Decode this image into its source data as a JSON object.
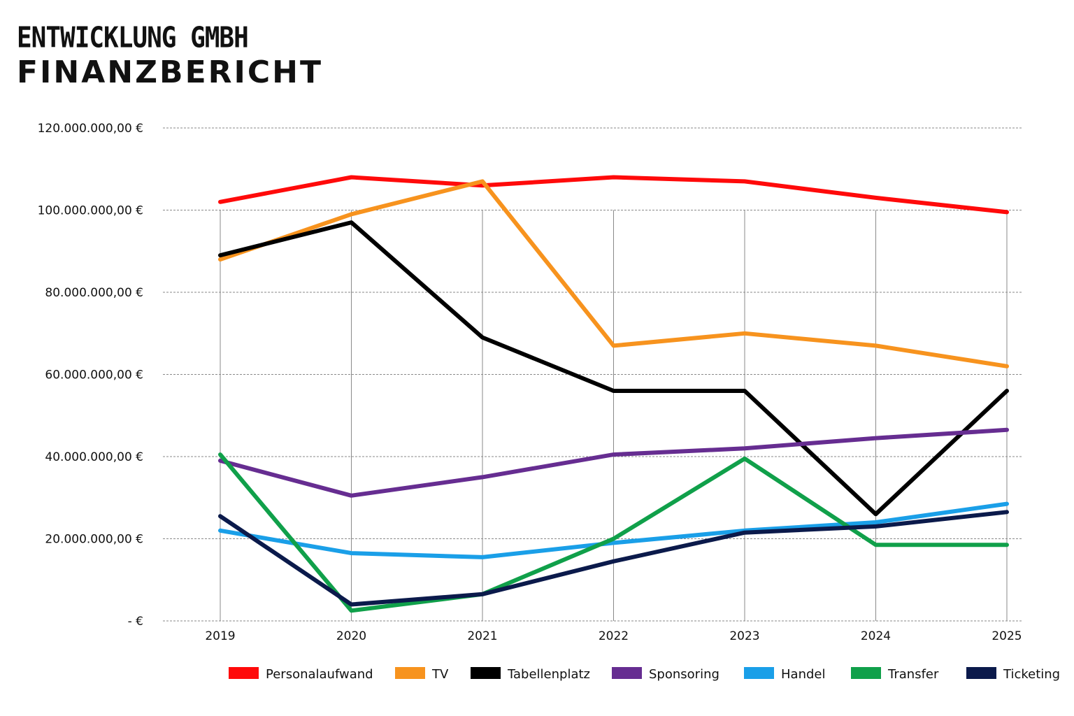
{
  "header": {
    "company": "ENTWICKLUNG GMBH",
    "report": "FINANZBERICHT"
  },
  "chart_data": {
    "type": "line",
    "title": "",
    "xlabel": "",
    "ylabel": "",
    "categories": [
      "2019",
      "2020",
      "2021",
      "2022",
      "2023",
      "2024",
      "2025"
    ],
    "y_ticks": [
      {
        "value": 0,
        "label": "-   €"
      },
      {
        "value": 20000000,
        "label": "20.000.000,00 €"
      },
      {
        "value": 40000000,
        "label": "40.000.000,00 €"
      },
      {
        "value": 60000000,
        "label": "60.000.000,00 €"
      },
      {
        "value": 80000000,
        "label": "80.000.000,00 €"
      },
      {
        "value": 100000000,
        "label": "100.000.000,00 €"
      },
      {
        "value": 120000000,
        "label": "120.000.000,00 €"
      }
    ],
    "ylim": [
      0,
      120000000
    ],
    "grid": true,
    "legend_position": "bottom",
    "series": [
      {
        "name": "Personalaufwand",
        "color": "#ff0a0a",
        "values": [
          102000000,
          108000000,
          106000000,
          108000000,
          107000000,
          103000000,
          99500000
        ]
      },
      {
        "name": "TV",
        "color": "#f7931e",
        "values": [
          88000000,
          99000000,
          107000000,
          67000000,
          70000000,
          67000000,
          62000000
        ]
      },
      {
        "name": "Tabellenplatz",
        "color": "#000000",
        "values": [
          89000000,
          97000000,
          69000000,
          56000000,
          56000000,
          26000000,
          56000000
        ]
      },
      {
        "name": "Sponsoring",
        "color": "#662d91",
        "values": [
          39000000,
          30500000,
          35000000,
          40500000,
          42000000,
          44500000,
          46500000
        ]
      },
      {
        "name": "Handel",
        "color": "#1a9fe8",
        "values": [
          22000000,
          16500000,
          15500000,
          19000000,
          22000000,
          24000000,
          28500000
        ]
      },
      {
        "name": "Transfer",
        "color": "#10a04a",
        "values": [
          40500000,
          2500000,
          6500000,
          20000000,
          39500000,
          18500000,
          18500000
        ]
      },
      {
        "name": "Ticketing",
        "color": "#0b1a4b",
        "values": [
          25500000,
          4000000,
          6500000,
          14500000,
          21500000,
          23000000,
          26500000
        ]
      }
    ]
  }
}
